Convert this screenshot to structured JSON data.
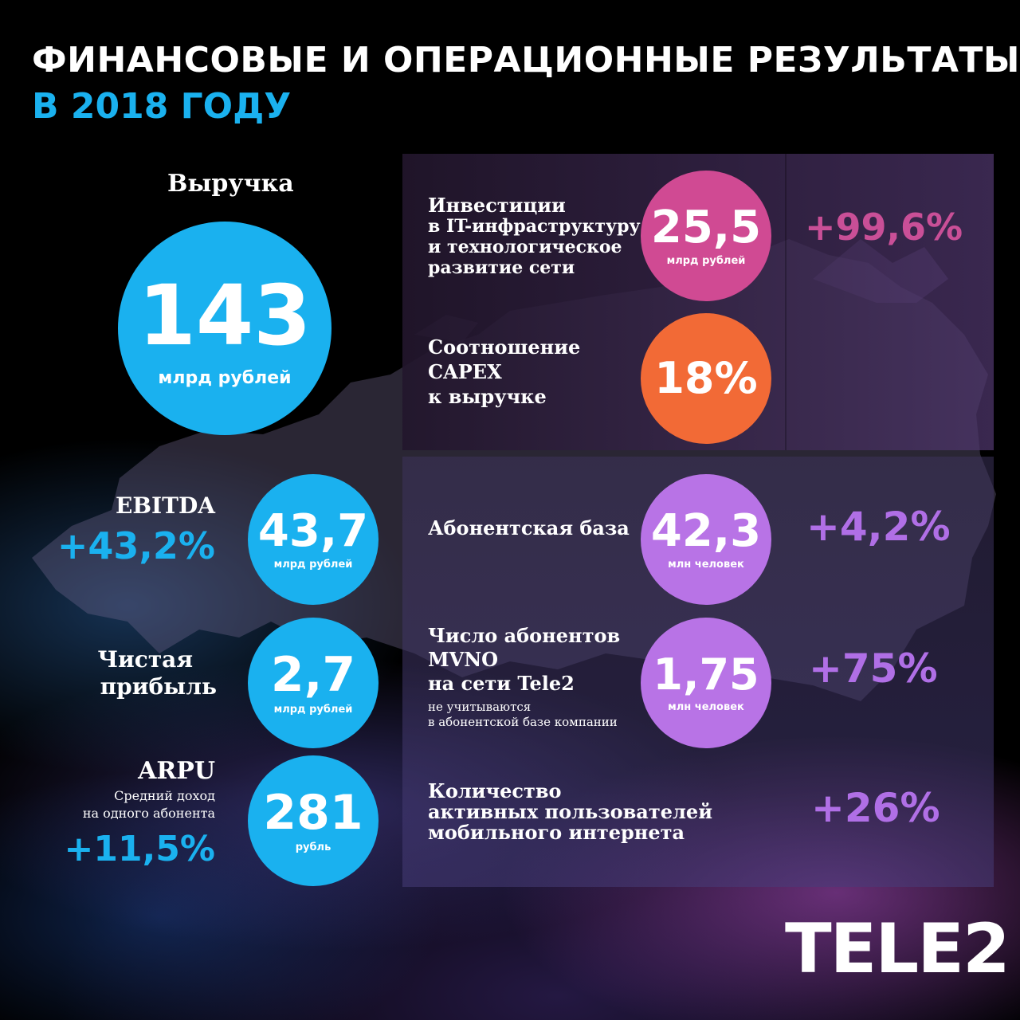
{
  "header": {
    "title": "ФИНАНСОВЫЕ И ОПЕРАЦИОННЫЕ РЕЗУЛЬТАТЫ",
    "subtitle": "В 2018 ГОДУ"
  },
  "revenue": {
    "label": "Выручка",
    "value": "143",
    "unit": "млрд рублей"
  },
  "ebitda": {
    "label": "EBITDA",
    "change": "+43,2%",
    "value": "43,7",
    "unit": "млрд рублей"
  },
  "net_profit": {
    "label_line1": "Чистая",
    "label_line2": "прибыль",
    "value": "2,7",
    "unit": "млрд рублей"
  },
  "arpu": {
    "label": "ARPU",
    "desc_line1": "Средний доход",
    "desc_line2": "на одного абонента",
    "change": "+11,5%",
    "value": "281",
    "unit": "рубль"
  },
  "investments": {
    "label_line1": "Инвестиции",
    "label_line2": "в IT-инфраструктуру",
    "label_line3": "и технологическое",
    "label_line4": "развитие сети",
    "value": "25,5",
    "unit": "млрд рублей",
    "change": "+99,6%"
  },
  "capex": {
    "label_line1": "Соотношение",
    "label_line2": "CAPEX",
    "label_line3": "к выручке",
    "value": "18%"
  },
  "subscribers": {
    "label": "Абонентская база",
    "value": "42,3",
    "unit": "млн человек",
    "change": "+4,2%"
  },
  "mvno": {
    "label_line1": "Число абонентов",
    "label_line2": "MVNO",
    "label_line3": "на сети Tele2",
    "note_line1": "не учитываются",
    "note_line2": "в абонентской базе компании",
    "value": "1,75",
    "unit": "млн человек",
    "change": "+75%"
  },
  "mobile_internet": {
    "label_line1": "Количество",
    "label_line2": "активных пользователей",
    "label_line3": "мобильного интернета",
    "change": "+26%"
  },
  "brand": {
    "logo": "TELE2"
  },
  "colors": {
    "blue": "#1ab1ef",
    "pink": "#d04a93",
    "orange": "#f26a36",
    "violet": "#b873e6",
    "pink_text": "#c94f97",
    "violet_text": "#b06fe6"
  }
}
